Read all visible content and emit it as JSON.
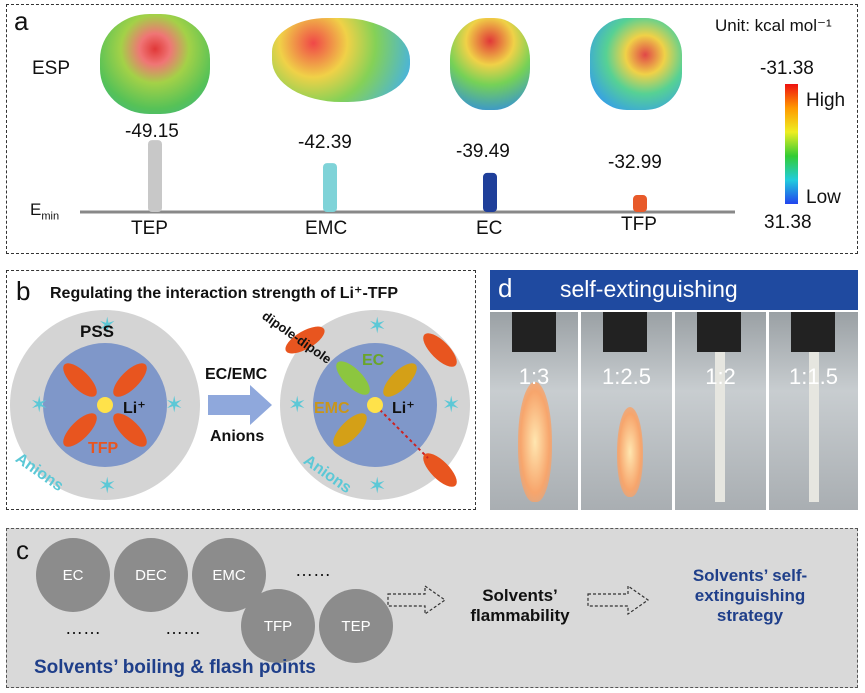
{
  "panel_a": {
    "letter": "a",
    "esp_label": "ESP",
    "unit": "Unit: kcal mol⁻¹",
    "emin_label_main": "E",
    "emin_label_sub": "min",
    "colorbar": {
      "top_value": "-31.38",
      "high": "High",
      "low": "Low",
      "bottom_value": "31.38"
    },
    "solvents": [
      {
        "name": "TEP",
        "value": "-49.15",
        "color": "#c8c8c8"
      },
      {
        "name": "EMC",
        "value": "-42.39",
        "color": "#7fd3d8"
      },
      {
        "name": "EC",
        "value": "-39.49",
        "color": "#1f3f9a"
      },
      {
        "name": "TFP",
        "value": "-32.99",
        "color": "#e85a2a"
      }
    ]
  },
  "panel_b": {
    "letter": "b",
    "title": "Regulating the interaction strength of Li⁺-TFP",
    "left": {
      "pss": "PSS",
      "li": "Li⁺",
      "tfp": "TFP",
      "anions": "Anions"
    },
    "arrow_top": "EC/EMC",
    "arrow_bottom": "Anions",
    "right": {
      "dipole": "dipole-dipole",
      "ec": "EC",
      "emc": "EMC",
      "li": "Li⁺",
      "anions": "Anions"
    }
  },
  "panel_d": {
    "letter": "d",
    "title": "self-extinguishing",
    "ratios": [
      "1:3",
      "1:2.5",
      "1:2",
      "1:1.5"
    ]
  },
  "panel_c": {
    "letter": "c",
    "circles": [
      "EC",
      "DEC",
      "EMC",
      "TFP",
      "TEP"
    ],
    "dots": "……",
    "flammability": "Solvents’ flammability",
    "strategy": "Solvents’ self-extinguishing strategy",
    "boiling": "Solvents’ boiling & flash points"
  }
}
